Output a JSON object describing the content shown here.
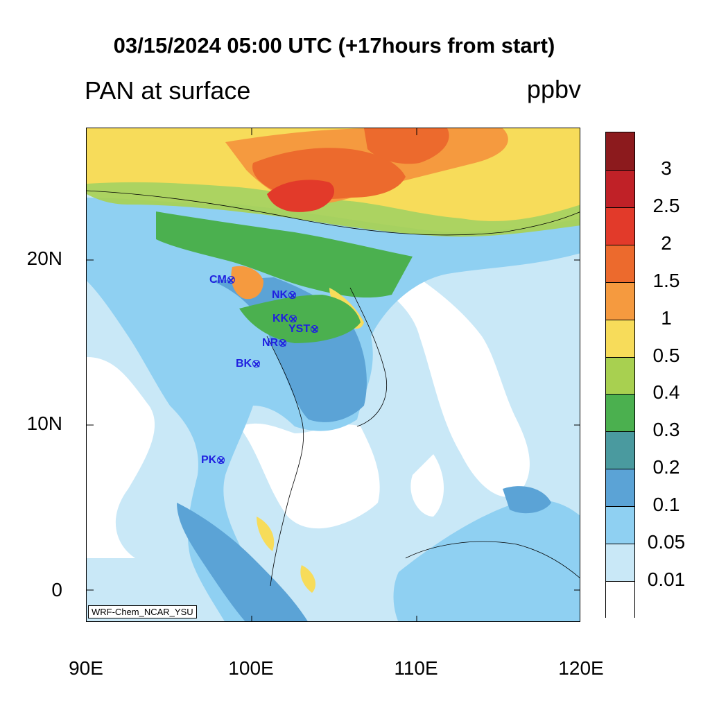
{
  "title": "03/15/2024 05:00 UTC (+17hours from start)",
  "subtitle": "PAN at surface",
  "units": "ppbv",
  "model_label": "WRF-Chem_NCAR_YSU",
  "y_axis_labels": [
    "20N",
    "10N",
    "0"
  ],
  "x_axis_labels": [
    "90E",
    "100E",
    "110E",
    "120E"
  ],
  "stations": [
    {
      "name": "CM",
      "lon": 98.9,
      "lat": 18.8
    },
    {
      "name": "NK",
      "lon": 102.7,
      "lat": 17.9
    },
    {
      "name": "KK",
      "lon": 102.8,
      "lat": 16.4
    },
    {
      "name": "YST",
      "lon": 104.1,
      "lat": 15.8
    },
    {
      "name": "NR",
      "lon": 102.1,
      "lat": 15.0
    },
    {
      "name": "BK",
      "lon": 100.5,
      "lat": 13.7
    },
    {
      "name": "PK",
      "lon": 98.3,
      "lat": 7.9
    }
  ],
  "colorbar": {
    "labels": [
      "3",
      "2.5",
      "2",
      "1.5",
      "1",
      "0.5",
      "0.4",
      "0.3",
      "0.2",
      "0.1",
      "0.05",
      "0.01"
    ],
    "colors": [
      "#8c1a1d",
      "#c02127",
      "#e23a2a",
      "#ec6a2d",
      "#f59a3f",
      "#f7dc5a",
      "#a8d050",
      "#4bb04f",
      "#4a9a9f",
      "#5ba3d6",
      "#8fd0f2",
      "#c9e8f7",
      "#ffffff"
    ]
  }
}
